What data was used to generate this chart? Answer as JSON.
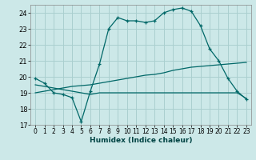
{
  "xlabel": "Humidex (Indice chaleur)",
  "ylabel": "",
  "bg_color": "#cce8e8",
  "grid_color": "#aacfcf",
  "line_color": "#006868",
  "xmin": -0.5,
  "xmax": 23.5,
  "ymin": 17,
  "ymax": 24.5,
  "yticks": [
    17,
    18,
    19,
    20,
    21,
    22,
    23,
    24
  ],
  "xticks": [
    0,
    1,
    2,
    3,
    4,
    5,
    6,
    7,
    8,
    9,
    10,
    11,
    12,
    13,
    14,
    15,
    16,
    17,
    18,
    19,
    20,
    21,
    22,
    23
  ],
  "curve1_x": [
    0,
    1,
    2,
    3,
    4,
    5,
    6,
    7,
    8,
    9,
    10,
    11,
    12,
    13,
    14,
    15,
    16,
    17,
    18,
    19,
    20,
    21,
    22,
    23
  ],
  "curve1_y": [
    19.9,
    19.6,
    19.0,
    18.9,
    18.7,
    17.2,
    19.1,
    20.8,
    23.0,
    23.7,
    23.5,
    23.5,
    23.4,
    23.5,
    24.0,
    24.2,
    24.3,
    24.1,
    23.2,
    21.75,
    21.0,
    19.9,
    19.1,
    18.6
  ],
  "curve2_x": [
    0,
    1,
    2,
    3,
    4,
    5,
    6,
    7,
    8,
    9,
    10,
    11,
    12,
    13,
    14,
    15,
    16,
    17,
    18,
    19,
    20,
    21,
    22,
    23
  ],
  "curve2_y": [
    19.0,
    19.1,
    19.2,
    19.3,
    19.4,
    19.45,
    19.5,
    19.6,
    19.7,
    19.8,
    19.9,
    20.0,
    20.1,
    20.15,
    20.25,
    20.4,
    20.5,
    20.6,
    20.65,
    20.7,
    20.75,
    20.8,
    20.85,
    20.9
  ],
  "curve3_x": [
    0,
    5,
    6,
    7,
    8,
    9,
    10,
    11,
    12,
    13,
    14,
    15,
    16,
    17,
    18,
    19,
    20,
    21,
    22,
    23
  ],
  "curve3_y": [
    19.5,
    19.0,
    18.9,
    19.0,
    19.0,
    19.0,
    19.0,
    19.0,
    19.0,
    19.0,
    19.0,
    19.0,
    19.0,
    19.0,
    19.0,
    19.0,
    19.0,
    19.0,
    19.0,
    18.65
  ]
}
